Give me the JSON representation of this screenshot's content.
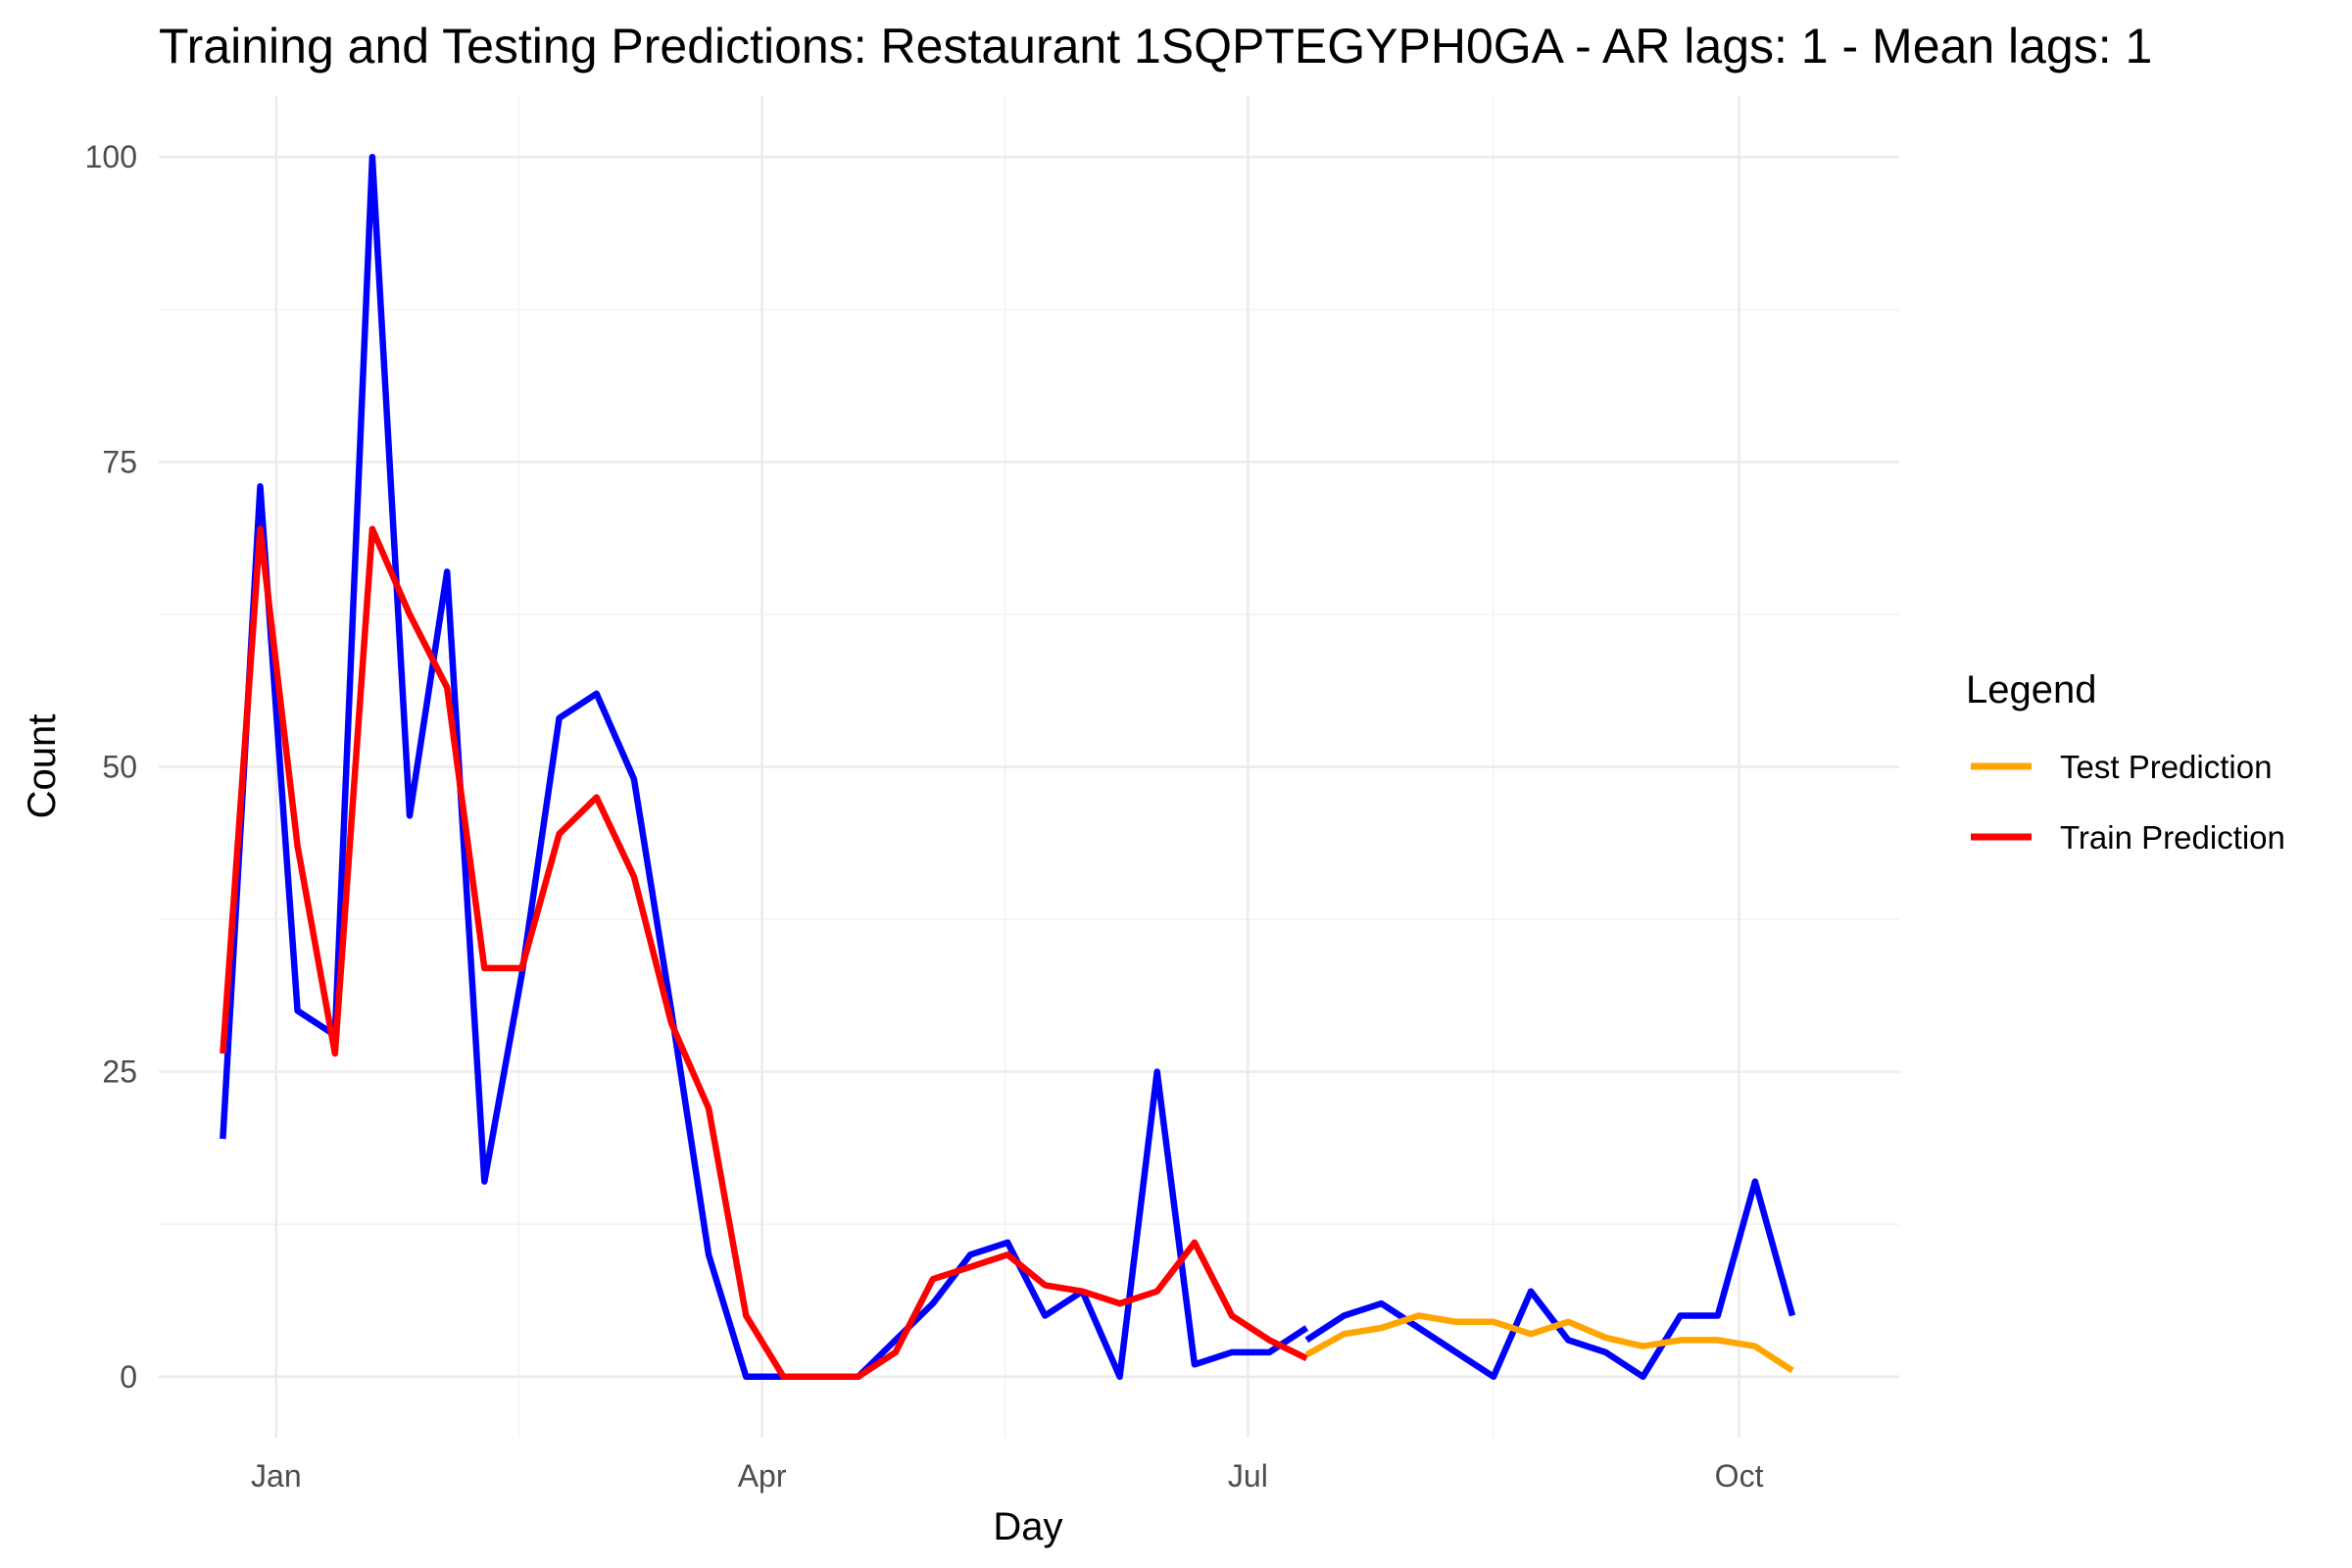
{
  "chart_data": {
    "type": "line",
    "title": "Training and Testing Predictions: Restaurant 1SQPTEGYPH0GA - AR lags: 1 - Mean lags: 1",
    "xlabel": "Day",
    "ylabel": "Count",
    "x_tick_labels": [
      "Jan",
      "Apr",
      "Jul",
      "Oct"
    ],
    "y_tick_labels": [
      "0",
      "25",
      "50",
      "75",
      "100"
    ],
    "x_ticks": [
      "2024-01-01",
      "2024-04-01",
      "2024-07-01",
      "2024-10-01"
    ],
    "y_ticks": [
      0,
      25,
      50,
      75,
      100
    ],
    "xlim": [
      "2023-12-10",
      "2024-10-31"
    ],
    "ylim": [
      -5,
      105
    ],
    "grid": true,
    "legend": {
      "title": "Legend",
      "position": "right",
      "entries": [
        {
          "label": "Test Prediction",
          "color": "#FFA500"
        },
        {
          "label": "Train Prediction",
          "color": "#FF0000"
        }
      ]
    },
    "series": [
      {
        "color": "#0000FF",
        "in_legend": false,
        "points": [
          [
            "2023-12-22",
            19.5
          ],
          [
            "2023-12-29",
            73
          ],
          [
            "2024-01-05",
            30
          ],
          [
            "2024-01-12",
            28
          ],
          [
            "2024-01-19",
            100
          ],
          [
            "2024-01-26",
            46
          ],
          [
            "2024-02-02",
            66
          ],
          [
            "2024-02-09",
            16
          ],
          [
            "2024-02-16",
            33
          ],
          [
            "2024-02-23",
            54
          ],
          [
            "2024-03-01",
            56
          ],
          [
            "2024-03-08",
            49
          ],
          [
            "2024-03-15",
            30
          ],
          [
            "2024-03-22",
            10
          ],
          [
            "2024-03-29",
            0
          ],
          [
            "2024-04-05",
            0
          ],
          [
            "2024-04-12",
            0
          ],
          [
            "2024-04-19",
            0
          ],
          [
            "2024-04-26",
            3
          ],
          [
            "2024-05-03",
            6
          ],
          [
            "2024-05-10",
            10
          ],
          [
            "2024-05-17",
            11
          ],
          [
            "2024-05-24",
            5
          ],
          [
            "2024-05-31",
            7
          ],
          [
            "2024-06-07",
            0
          ],
          [
            "2024-06-14",
            25
          ],
          [
            "2024-06-21",
            1
          ],
          [
            "2024-06-28",
            2
          ],
          [
            "2024-07-05",
            2
          ],
          [
            "2024-07-12",
            4
          ]
        ]
      },
      {
        "color": "#0000FF",
        "in_legend": false,
        "points": [
          [
            "2024-07-12",
            3
          ],
          [
            "2024-07-19",
            5
          ],
          [
            "2024-07-26",
            6
          ],
          [
            "2024-08-02",
            4
          ],
          [
            "2024-08-09",
            2
          ],
          [
            "2024-08-16",
            0
          ],
          [
            "2024-08-23",
            7
          ],
          [
            "2024-08-30",
            3
          ],
          [
            "2024-09-06",
            2
          ],
          [
            "2024-09-13",
            0
          ],
          [
            "2024-09-20",
            5
          ],
          [
            "2024-09-27",
            5
          ],
          [
            "2024-10-04",
            16
          ],
          [
            "2024-10-11",
            5
          ]
        ]
      },
      {
        "name": "Train Prediction",
        "color": "#FF0000",
        "in_legend": true,
        "points": [
          [
            "2023-12-22",
            26.5
          ],
          [
            "2023-12-29",
            69.5
          ],
          [
            "2024-01-05",
            43.5
          ],
          [
            "2024-01-12",
            26.5
          ],
          [
            "2024-01-19",
            69.5
          ],
          [
            "2024-01-26",
            62.5
          ],
          [
            "2024-02-02",
            56.5
          ],
          [
            "2024-02-09",
            33.5
          ],
          [
            "2024-02-16",
            33.5
          ],
          [
            "2024-02-23",
            44.5
          ],
          [
            "2024-03-01",
            47.5
          ],
          [
            "2024-03-08",
            41
          ],
          [
            "2024-03-15",
            29
          ],
          [
            "2024-03-22",
            22
          ],
          [
            "2024-03-29",
            5
          ],
          [
            "2024-04-05",
            0
          ],
          [
            "2024-04-12",
            0
          ],
          [
            "2024-04-19",
            0
          ],
          [
            "2024-04-26",
            2
          ],
          [
            "2024-05-03",
            8
          ],
          [
            "2024-05-10",
            9
          ],
          [
            "2024-05-17",
            10
          ],
          [
            "2024-05-24",
            7.5
          ],
          [
            "2024-05-31",
            7
          ],
          [
            "2024-06-07",
            6
          ],
          [
            "2024-06-14",
            7
          ],
          [
            "2024-06-21",
            11
          ],
          [
            "2024-06-28",
            5
          ],
          [
            "2024-07-05",
            3
          ],
          [
            "2024-07-12",
            1.5
          ]
        ]
      },
      {
        "name": "Test Prediction",
        "color": "#FFA500",
        "in_legend": true,
        "points": [
          [
            "2024-07-12",
            1.8
          ],
          [
            "2024-07-19",
            3.5
          ],
          [
            "2024-07-26",
            4
          ],
          [
            "2024-08-02",
            5
          ],
          [
            "2024-08-09",
            4.5
          ],
          [
            "2024-08-16",
            4.5
          ],
          [
            "2024-08-23",
            3.5
          ],
          [
            "2024-08-30",
            4.5
          ],
          [
            "2024-09-06",
            3.2
          ],
          [
            "2024-09-13",
            2.5
          ],
          [
            "2024-09-20",
            3
          ],
          [
            "2024-09-27",
            3
          ],
          [
            "2024-10-04",
            2.5
          ],
          [
            "2024-10-11",
            0.5
          ]
        ]
      }
    ]
  }
}
